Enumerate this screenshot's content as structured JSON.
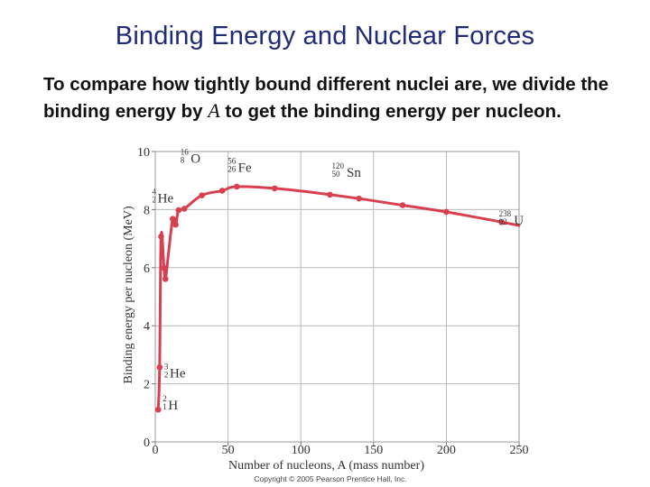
{
  "slide": {
    "title": "Binding Energy and Nuclear Forces",
    "body_part1": "To compare how tightly bound different nuclei are, we divide the binding energy by ",
    "body_var": "A",
    "body_part2": " to get the binding energy per nucleon."
  },
  "chart_data": {
    "type": "line",
    "title": "",
    "xlabel": "Number of nucleons, A (mass number)",
    "ylabel": "Binding energy per nucleon (MeV)",
    "xlim": [
      0,
      250
    ],
    "ylim": [
      0,
      10
    ],
    "xticks": [
      0,
      50,
      100,
      150,
      200,
      250
    ],
    "yticks": [
      0,
      2,
      4,
      6,
      8,
      10
    ],
    "grid": true,
    "series": [
      {
        "color": "#d9404f",
        "x": [
          2,
          3,
          4,
          6,
          7,
          9,
          12,
          14,
          16,
          20,
          32,
          46,
          56,
          82,
          110,
          140,
          170,
          200,
          238,
          250
        ],
        "y": [
          1.11,
          2.57,
          7.07,
          5.99,
          5.61,
          6.46,
          7.68,
          7.48,
          7.98,
          8.03,
          8.49,
          8.65,
          8.79,
          8.73,
          8.58,
          8.38,
          8.15,
          7.92,
          7.57,
          7.45
        ],
        "x_markers": [
          2,
          3,
          4,
          6,
          7,
          12,
          14,
          16,
          20,
          32,
          46,
          56,
          82,
          120,
          140,
          170,
          200,
          238
        ]
      }
    ],
    "annotations": [
      {
        "label": "He",
        "mass": "4",
        "atomic": "2",
        "x": 4,
        "y": 8.55
      },
      {
        "label": "O",
        "mass": "16",
        "atomic": "8",
        "x": 16,
        "y": 9.3
      },
      {
        "label": "Fe",
        "mass": "56",
        "atomic": "26",
        "x": 56,
        "y": 9.05
      },
      {
        "label": "Sn",
        "mass": "120",
        "atomic": "50",
        "x": 120,
        "y": 8.95
      },
      {
        "label": "U",
        "mass": "238",
        "atomic": "92",
        "x": 238,
        "y": 7.85
      },
      {
        "label": "He",
        "mass": "3",
        "atomic": "2",
        "x": 3,
        "y": 2.6
      },
      {
        "label": "H",
        "mass": "2",
        "atomic": "1",
        "x": 2,
        "y": 1.3
      }
    ],
    "copyright": "Copyright © 2005 Pearson Prentice Hall, Inc."
  }
}
